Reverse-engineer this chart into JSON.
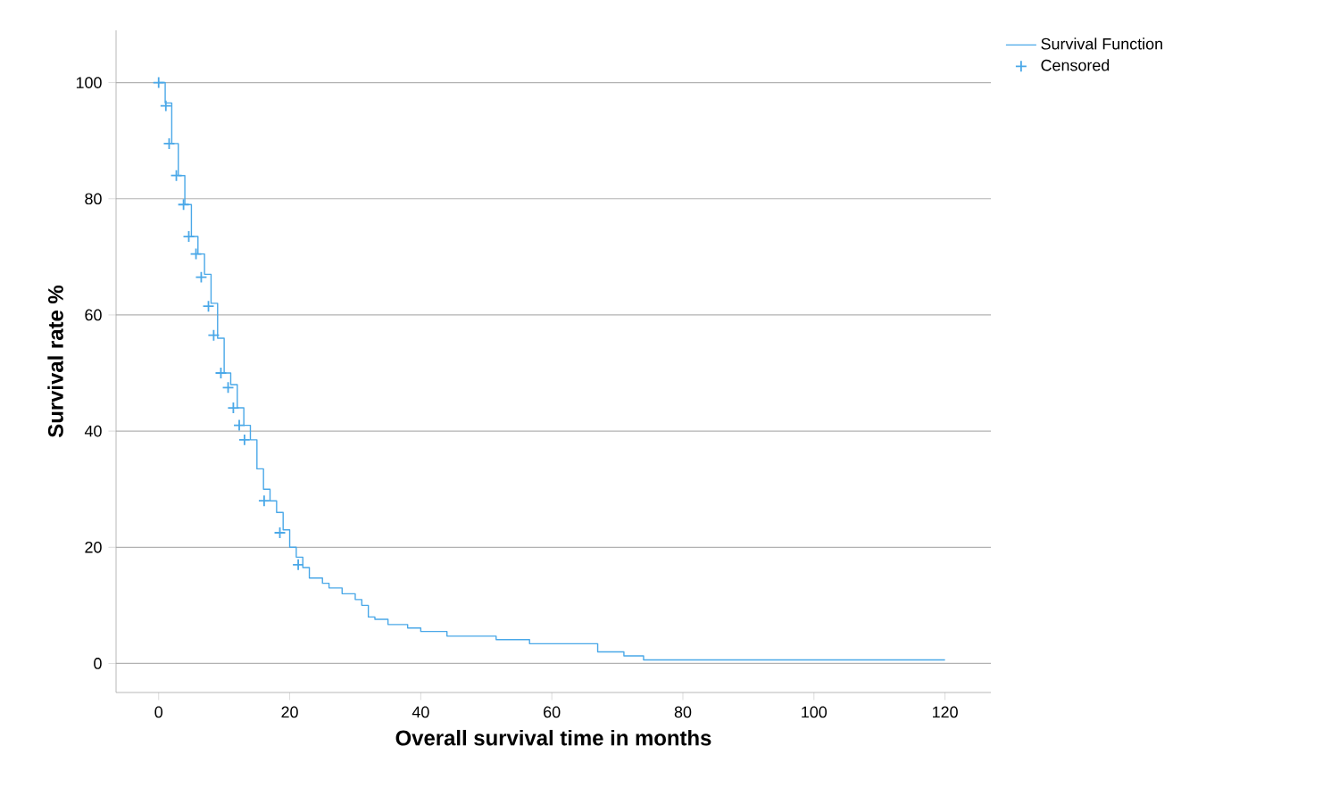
{
  "chart_data": {
    "type": "step",
    "xlabel": "Overall survival time in months",
    "ylabel": "Survival rate %",
    "xlim": [
      -6.5,
      127
    ],
    "ylim": [
      -5,
      109
    ],
    "xticks": [
      0,
      20,
      40,
      60,
      80,
      100,
      120
    ],
    "yticks": [
      0,
      20,
      40,
      60,
      80,
      100
    ],
    "grid": "y",
    "legend": "top right",
    "series": [
      {
        "name": "Survival Function",
        "color": "#4aa8e8",
        "x": [
          0,
          1,
          2,
          3,
          4,
          5,
          6,
          7,
          8,
          9,
          10,
          11,
          12,
          13,
          14,
          15,
          16,
          17,
          18,
          19,
          20,
          21,
          22,
          23,
          25,
          26,
          28,
          30,
          31,
          32,
          33,
          35,
          38,
          40,
          44,
          51.5,
          56.6,
          67,
          71,
          74,
          120
        ],
        "values": [
          100,
          96.5,
          89.5,
          84,
          79,
          73.5,
          70.5,
          67,
          62,
          56,
          50,
          48,
          44,
          41,
          38.5,
          33.5,
          30,
          28,
          26,
          23,
          20,
          18.3,
          16.5,
          14.7,
          13.8,
          13,
          12,
          11,
          10,
          8,
          7.6,
          6.7,
          6.1,
          5.5,
          4.7,
          4.1,
          3.4,
          2,
          1.3,
          0.6,
          0.6
        ]
      },
      {
        "name": "Censored",
        "type": "scatter",
        "marker": "cross",
        "color": "#4aa8e8",
        "x": [
          0,
          1.1,
          1.6,
          2.7,
          3.8,
          4.6,
          5.7,
          6.5,
          7.6,
          8.4,
          9.5,
          10.6,
          11.4,
          12.3,
          13.1,
          16.1,
          18.5,
          21.3
        ],
        "values": [
          100,
          96,
          89.5,
          84,
          79,
          73.5,
          70.5,
          66.5,
          61.5,
          56.5,
          50,
          47.5,
          44,
          41,
          38.5,
          28,
          22.5,
          17
        ]
      }
    ]
  }
}
